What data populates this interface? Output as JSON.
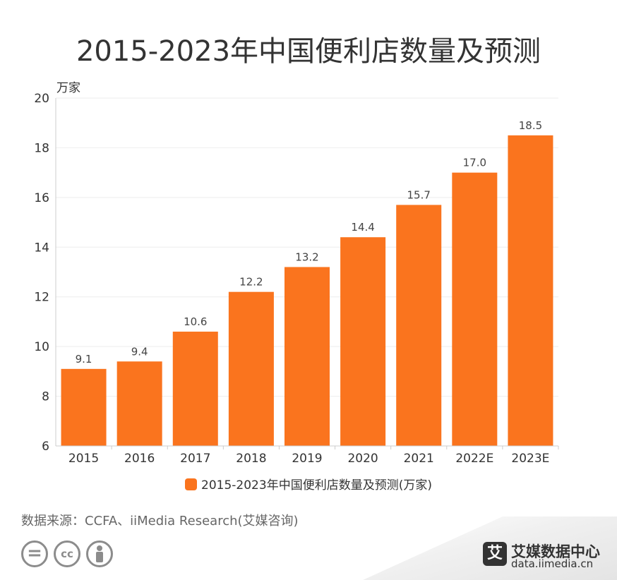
{
  "title": "2015-2023年中国便利店数量及预测",
  "source": "数据来源：CCFA、iiMedia Research(艾媒咨询)",
  "brand": {
    "logo_char": "艾",
    "name": "艾媒数据中心",
    "url": "data.iimedia.cn"
  },
  "icons": [
    "equals-icon",
    "cc-icon",
    "attribution-person-icon"
  ],
  "icon_text": {
    "equals": "=",
    "cc": "cc"
  },
  "colors": {
    "bar": "#fa741e",
    "text": "#333333",
    "axis": "#cccccc"
  },
  "chart_data": {
    "type": "bar",
    "title": "2015-2023年中国便利店数量及预测",
    "ylabel": "万家",
    "ylim": [
      6,
      20
    ],
    "yticks": [
      6,
      8,
      10,
      12,
      14,
      16,
      18,
      20
    ],
    "grid": true,
    "legend_position": "bottom",
    "categories": [
      "2015",
      "2016",
      "2017",
      "2018",
      "2019",
      "2020",
      "2021",
      "2022E",
      "2023E"
    ],
    "series": [
      {
        "name": "2015-2023年中国便利店数量及预测(万家)",
        "values": [
          9.1,
          9.4,
          10.6,
          12.2,
          13.2,
          14.4,
          15.7,
          17.0,
          18.5
        ],
        "labels": [
          "9.1",
          "9.4",
          "10.6",
          "12.2",
          "13.2",
          "14.4",
          "15.7",
          "17.0",
          "18.5"
        ]
      }
    ]
  }
}
